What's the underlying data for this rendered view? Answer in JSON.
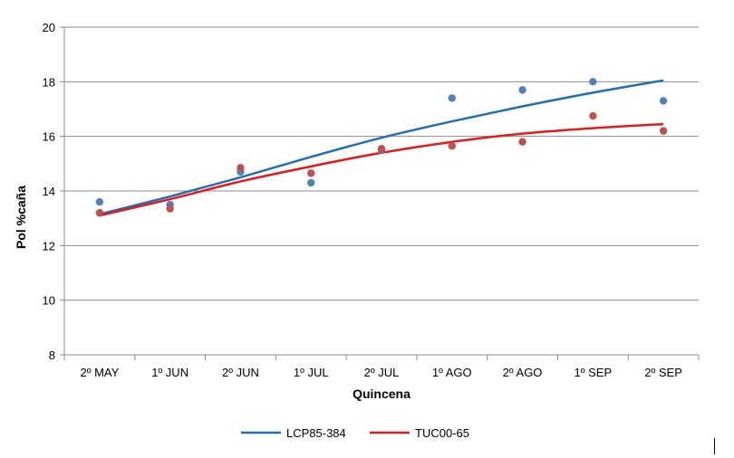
{
  "chart_data": {
    "type": "scatter",
    "xlabel": "Quincena",
    "ylabel": "Pol %caña",
    "ylim": [
      8,
      20
    ],
    "yticks": [
      8,
      10,
      12,
      14,
      16,
      18,
      20
    ],
    "categories": [
      "2º MAY",
      "1º JUN",
      "2º JUN",
      "1º JUL",
      "2º JUL",
      "1º AGO",
      "2º AGO",
      "1º SEP",
      "2º SEP"
    ],
    "grid": true,
    "legend_position": "bottom",
    "series": [
      {
        "name": "LCP85-384",
        "color": "#4F81BD",
        "trend_color": "#1F6FB5",
        "values": [
          13.6,
          13.5,
          14.7,
          14.3,
          15.5,
          17.4,
          17.7,
          18.0,
          17.3
        ],
        "trend": [
          13.15,
          13.8,
          14.5,
          15.25,
          15.95,
          16.55,
          17.1,
          17.6,
          18.05
        ]
      },
      {
        "name": "TUC00-65",
        "color": "#C0504D",
        "trend_color": "#E31A1C",
        "values": [
          13.2,
          13.35,
          14.85,
          14.65,
          15.55,
          15.65,
          15.8,
          16.75,
          16.2
        ],
        "trend": [
          13.1,
          13.7,
          14.35,
          14.9,
          15.4,
          15.8,
          16.1,
          16.3,
          16.45
        ]
      }
    ]
  }
}
